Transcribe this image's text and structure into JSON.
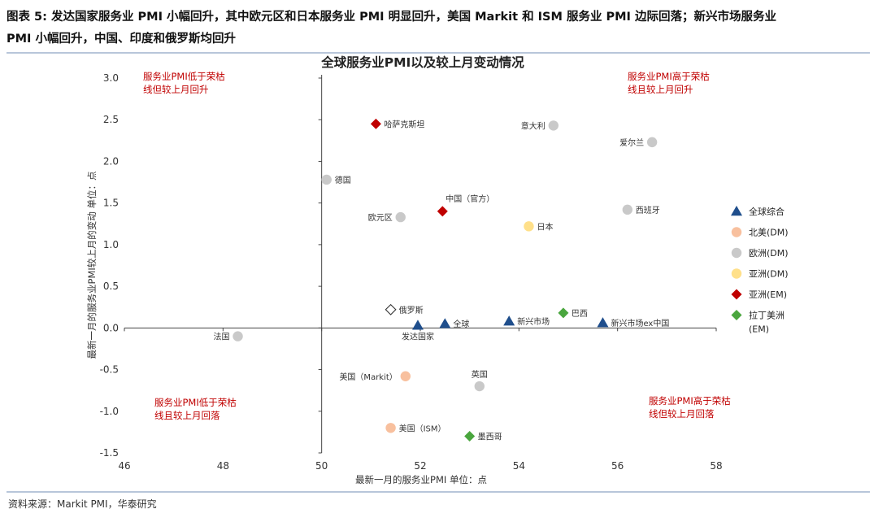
{
  "header": {
    "line1": "图表 5:   发达国家服务业 PMI 小幅回升，其中欧元区和日本服务业 PMI 明显回升，美国 Markit 和 ISM 服务业 PMI 边际回落；新兴市场服务业",
    "line2": "PMI 小幅回升，中国、印度和俄罗斯均回升"
  },
  "source": "资料来源：Markit PMI，华泰研究",
  "colors": {
    "global": "#1f4e8c",
    "dm_na": "#f8c09e",
    "dm_eu": "#c9c9c9",
    "dm_asia": "#ffe08a",
    "em_asia": "#c00000",
    "em_latam": "#4aa63e",
    "quadrant_text": "#c00000"
  },
  "chart_data": {
    "type": "scatter",
    "title": "全球服务业PMI以及较上月变动情况",
    "xlabel": "最新一月的服务业PMI     单位：点",
    "ylabel": "最新一月的服务业PMI较上月的变动     单位：点",
    "xlim": [
      46,
      58
    ],
    "ylim": [
      -1.5,
      3.0
    ],
    "x_ticks": [
      "46",
      "48",
      "50",
      "52",
      "54",
      "56",
      "58"
    ],
    "y_ticks": [
      "-1.5",
      "-1.0",
      "-0.5",
      "0.0",
      "0.5",
      "1.0",
      "1.5",
      "2.0",
      "2.5",
      "3.0"
    ],
    "x_cross": 50,
    "y_cross": 0,
    "quadrants": {
      "top_left": [
        "服务业PMI低于荣枯",
        "线但较上月回升"
      ],
      "top_right": [
        "服务业PMI高于荣枯",
        "线且较上月回升"
      ],
      "bottom_left": [
        "服务业PMI低于荣枯",
        "线且较上月回落"
      ],
      "bottom_right": [
        "服务业PMI高于荣枯",
        "线但较上月回落"
      ]
    },
    "legend": [
      {
        "label": "全球综合",
        "group": "global",
        "marker": "triangle"
      },
      {
        "label": "北美(DM)",
        "group": "dm_na",
        "marker": "circle"
      },
      {
        "label": "欧洲(DM)",
        "group": "dm_eu",
        "marker": "circle"
      },
      {
        "label": "亚洲(DM)",
        "group": "dm_asia",
        "marker": "circle"
      },
      {
        "label": "亚洲(EM)",
        "group": "em_asia",
        "marker": "diamond"
      },
      {
        "label": "拉丁美洲(EM)",
        "group": "em_latam",
        "marker": "diamond"
      }
    ],
    "legend_placement": "right",
    "points": [
      {
        "label": "意大利",
        "x": 54.7,
        "y": 2.43,
        "group": "dm_eu",
        "marker": "circle",
        "label_pos": "left"
      },
      {
        "label": "爱尔兰",
        "x": 56.7,
        "y": 2.23,
        "group": "dm_eu",
        "marker": "circle",
        "label_pos": "left"
      },
      {
        "label": "德国",
        "x": 50.1,
        "y": 1.78,
        "group": "dm_eu",
        "marker": "circle",
        "label_pos": "right"
      },
      {
        "label": "欧元区",
        "x": 51.6,
        "y": 1.33,
        "group": "dm_eu",
        "marker": "circle",
        "label_pos": "left"
      },
      {
        "label": "西班牙",
        "x": 56.2,
        "y": 1.42,
        "group": "dm_eu",
        "marker": "circle",
        "label_pos": "right"
      },
      {
        "label": "法国",
        "x": 48.3,
        "y": -0.1,
        "group": "dm_eu",
        "marker": "circle",
        "label_pos": "left"
      },
      {
        "label": "英国",
        "x": 53.2,
        "y": -0.7,
        "group": "dm_eu",
        "marker": "circle",
        "label_pos": "above"
      },
      {
        "label": "日本",
        "x": 54.2,
        "y": 1.22,
        "group": "dm_asia",
        "marker": "circle",
        "label_pos": "right"
      },
      {
        "label": "美国（Markit）",
        "x": 51.7,
        "y": -0.58,
        "group": "dm_na",
        "marker": "circle",
        "label_pos": "left"
      },
      {
        "label": "美国（ISM）",
        "x": 51.4,
        "y": -1.2,
        "group": "dm_na",
        "marker": "circle",
        "label_pos": "right"
      },
      {
        "label": "哈萨克斯坦",
        "x": 51.1,
        "y": 2.45,
        "group": "em_asia",
        "marker": "diamond",
        "label_pos": "right"
      },
      {
        "label": "中国（官方）",
        "x": 52.45,
        "y": 1.4,
        "group": "em_asia",
        "marker": "diamond",
        "label_pos": "above-right"
      },
      {
        "label": "俄罗斯",
        "x": 51.4,
        "y": 0.22,
        "group": "em_asia",
        "marker": "diamond-open",
        "label_pos": "right"
      },
      {
        "label": "巴西",
        "x": 54.9,
        "y": 0.18,
        "group": "em_latam",
        "marker": "diamond",
        "label_pos": "right"
      },
      {
        "label": "墨西哥",
        "x": 53.0,
        "y": -1.3,
        "group": "em_latam",
        "marker": "diamond",
        "label_pos": "right"
      },
      {
        "label": "发达国家",
        "x": 51.95,
        "y": 0.03,
        "group": "global",
        "marker": "triangle",
        "label_pos": "below"
      },
      {
        "label": "全球",
        "x": 52.5,
        "y": 0.05,
        "group": "global",
        "marker": "triangle",
        "label_pos": "right"
      },
      {
        "label": "新兴市场",
        "x": 53.8,
        "y": 0.08,
        "group": "global",
        "marker": "triangle",
        "label_pos": "right"
      },
      {
        "label": "新兴市场ex中国",
        "x": 55.7,
        "y": 0.06,
        "group": "global",
        "marker": "triangle",
        "label_pos": "right"
      }
    ]
  }
}
